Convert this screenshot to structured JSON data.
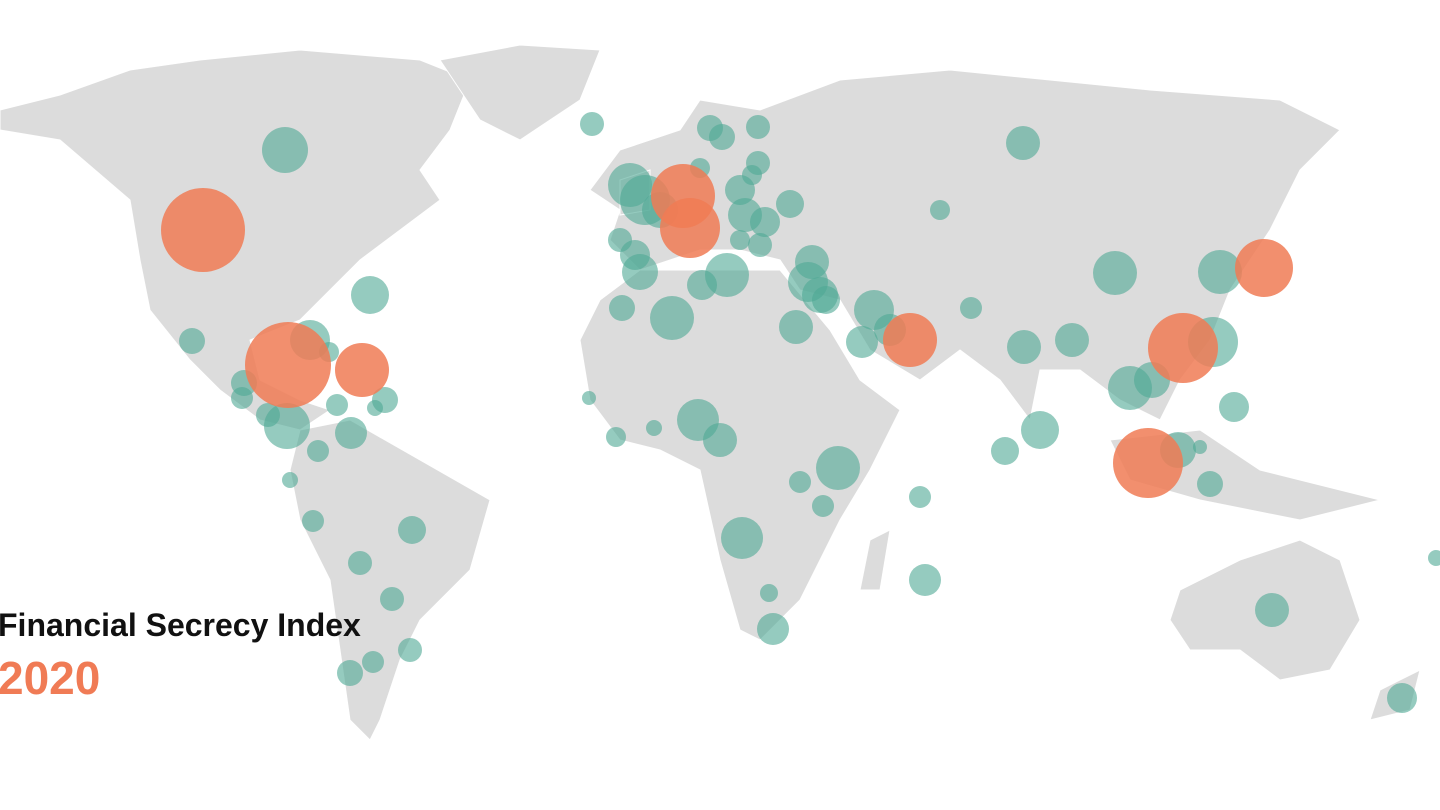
{
  "title": "Financial Secrecy Index",
  "year": "2020"
}
